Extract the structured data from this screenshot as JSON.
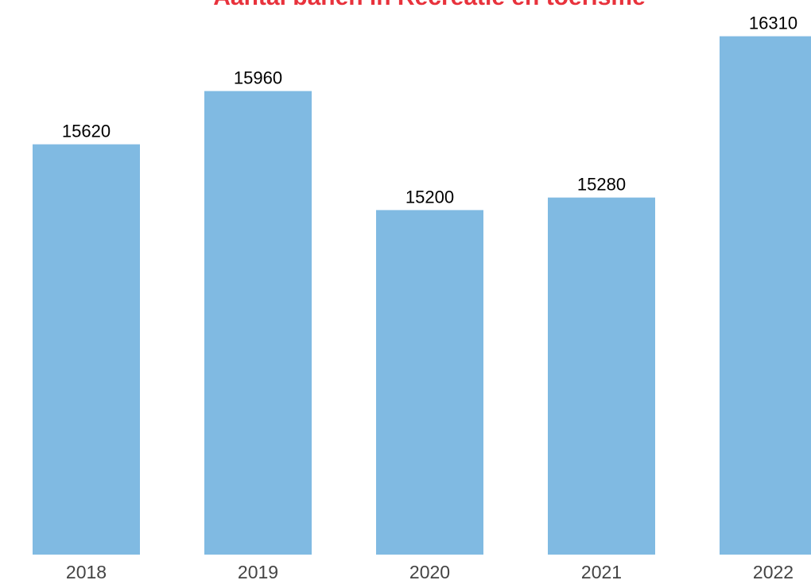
{
  "chart_data": {
    "type": "bar",
    "title": "Aantal banen in Recreatie en toerisme",
    "xlabel": "",
    "ylabel": "",
    "categories": [
      "2018",
      "2019",
      "2020",
      "2021",
      "2022"
    ],
    "values": [
      15620,
      15960,
      15200,
      15280,
      16310
    ],
    "data_labels": [
      "15620",
      "15960",
      "15200",
      "15280",
      "16310"
    ],
    "ylim": [
      13000,
      16440
    ],
    "grid": false,
    "legend": "none"
  },
  "colors": {
    "bar": "#80bae2",
    "title": "#e8323c",
    "data_label": "#000000",
    "tick_label": "#444444"
  }
}
